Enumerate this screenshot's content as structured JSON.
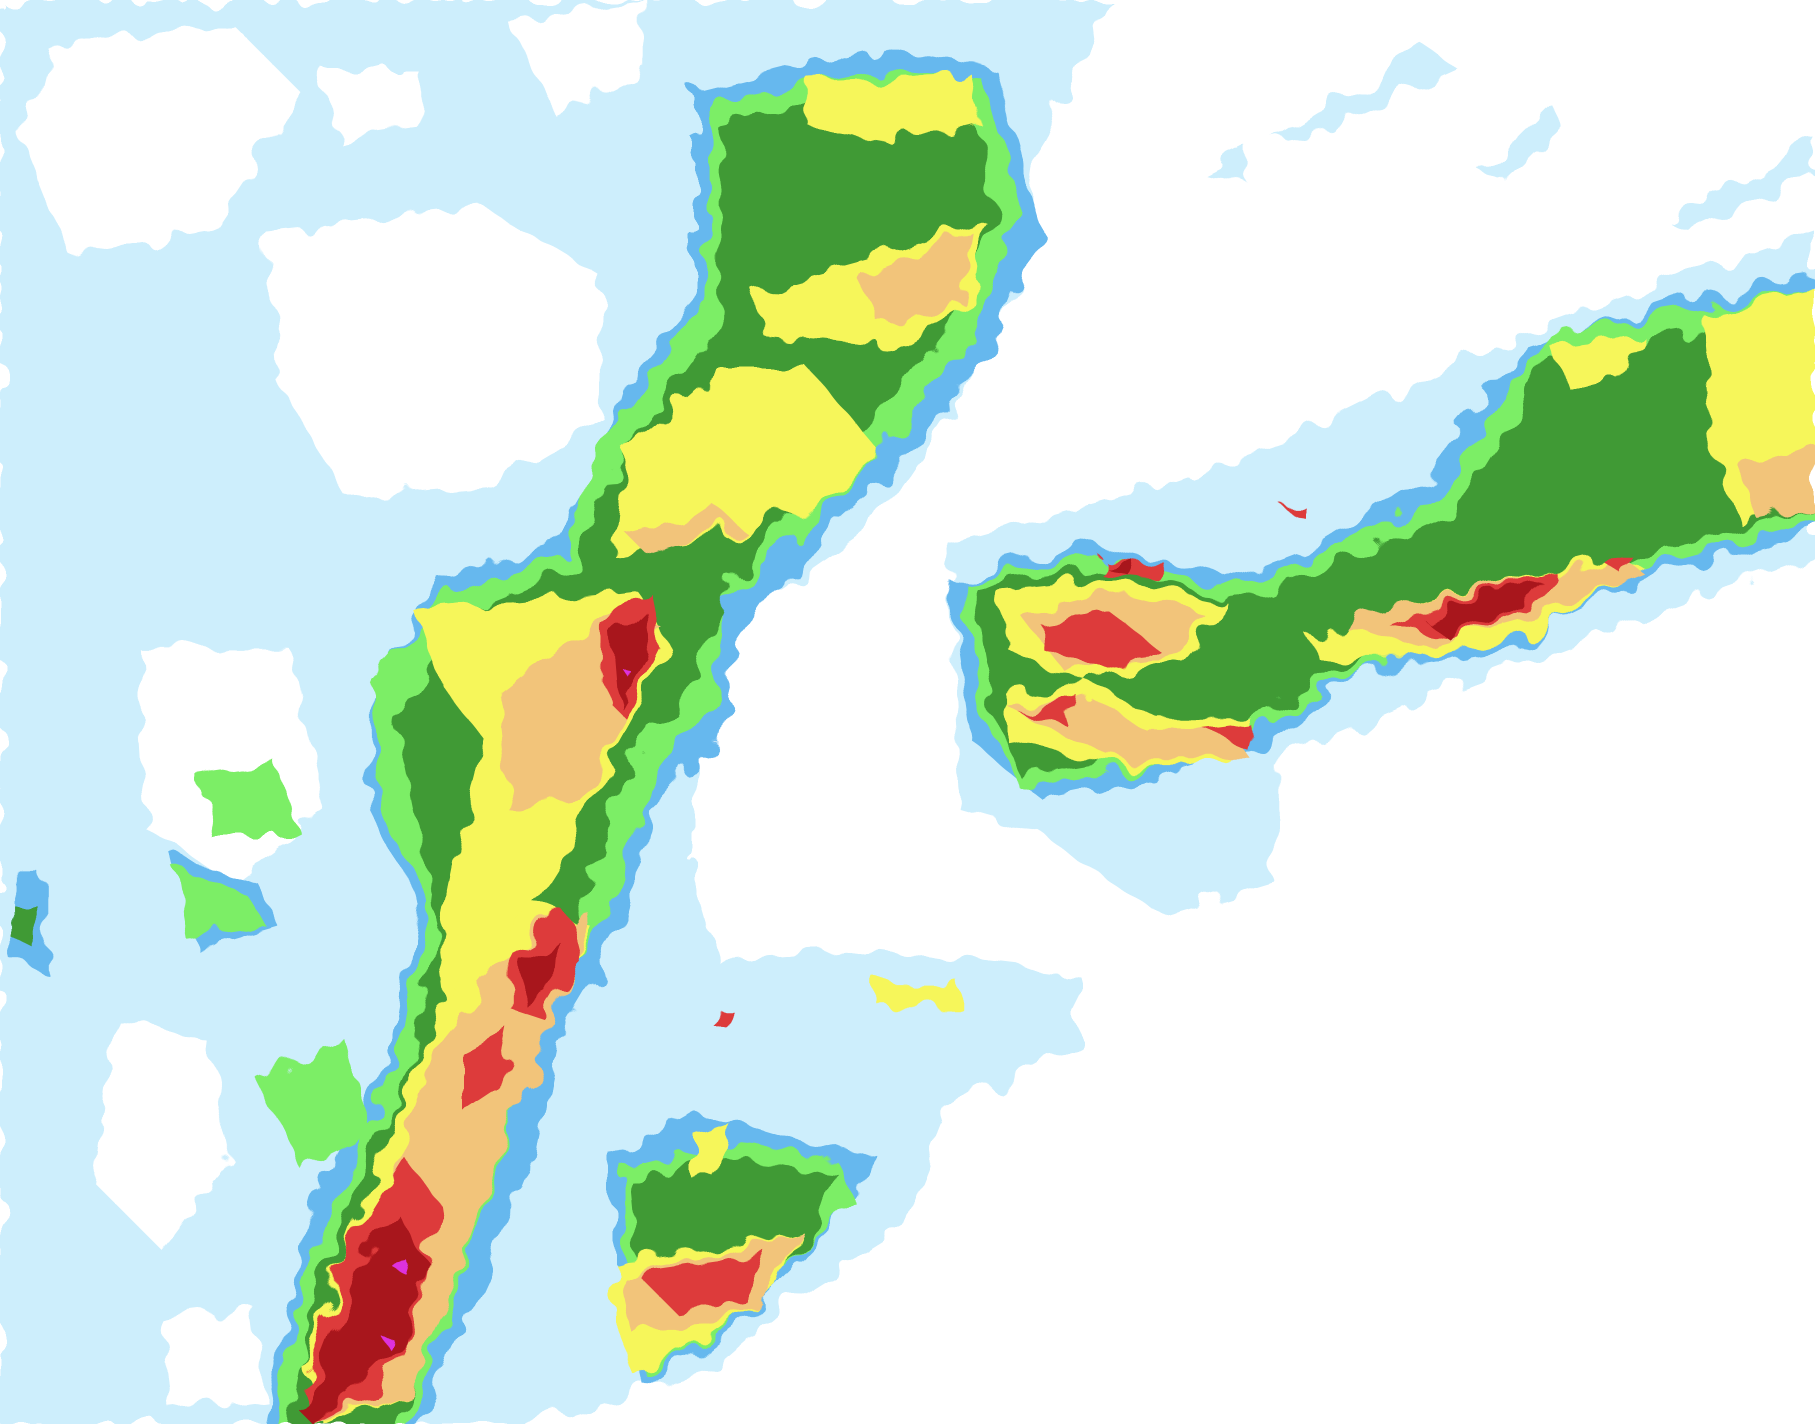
{
  "map": {
    "type": "precipitation-radar",
    "palette": {
      "background": "#ffffff",
      "very_light": "#cdeefc",
      "light": "#66b8ee",
      "light_moderate": "#7cee66",
      "moderate": "#3f9a36",
      "moderate_heavy": "#f6f65a",
      "heavy": "#f2c47a",
      "very_heavy": "#dd3a3a",
      "intense": "#a8141a",
      "extreme": "#dd33dd"
    }
  }
}
